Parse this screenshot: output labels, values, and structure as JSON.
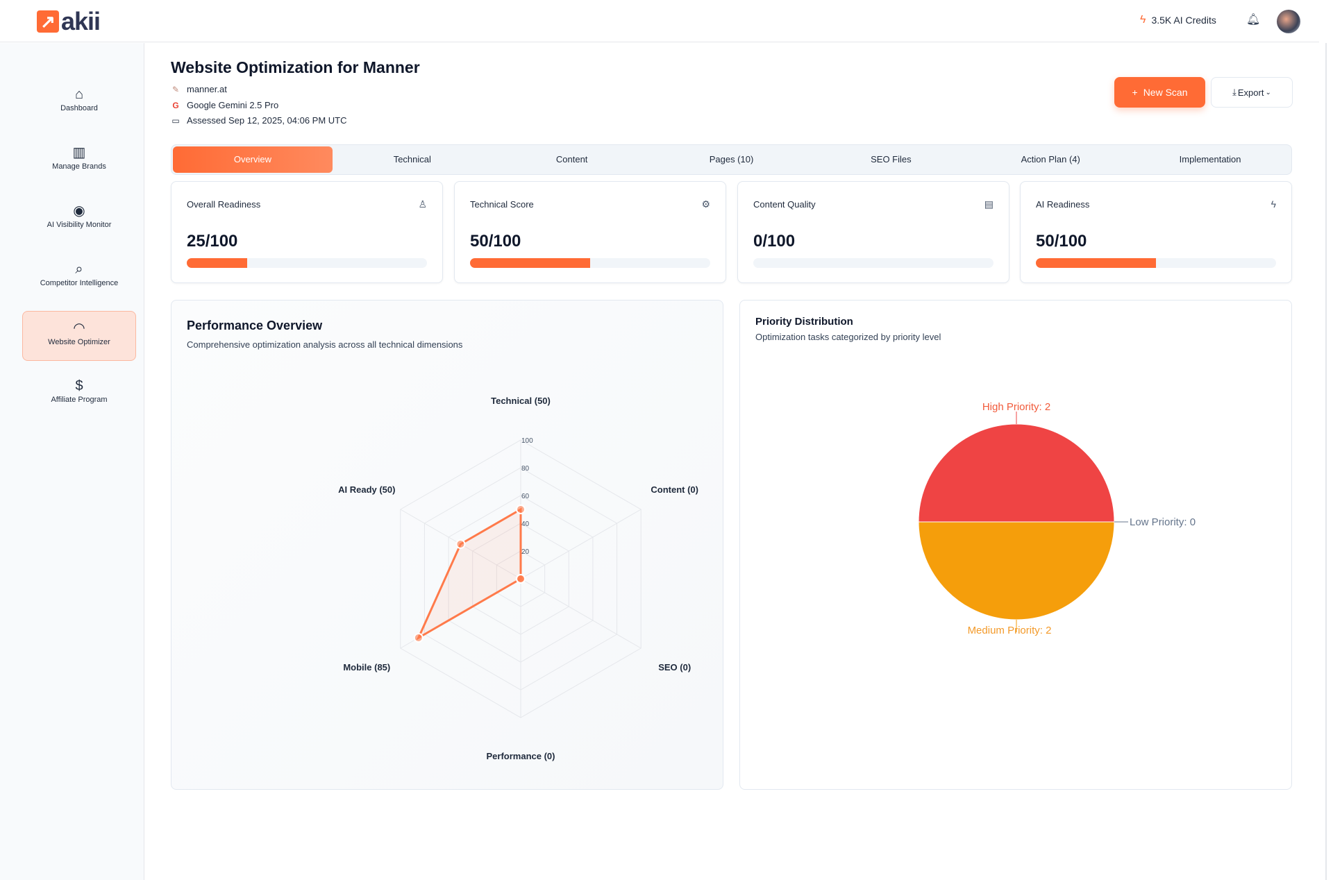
{
  "header": {
    "logo_text": "akii",
    "credits": "3.5K AI Credits"
  },
  "sidebar": {
    "items": [
      {
        "label": "Dashboard",
        "icon": "home-icon",
        "glyph": "⌂"
      },
      {
        "label": "Manage Brands",
        "icon": "building-icon",
        "glyph": "▥"
      },
      {
        "label": "AI Visibility Monitor",
        "icon": "eye-icon",
        "glyph": "◉"
      },
      {
        "label": "Competitor Intelligence",
        "icon": "search-icon",
        "glyph": "⌕"
      },
      {
        "label": "Website Optimizer",
        "icon": "gauge-icon",
        "glyph": "◠"
      },
      {
        "label": "Affiliate Program",
        "icon": "dollar-icon",
        "glyph": "$"
      }
    ]
  },
  "page": {
    "title": "Website Optimization for Manner",
    "domain": "manner.at",
    "model": "Google Gemini 2.5 Pro",
    "assessed": "Assessed Sep 12, 2025, 04:06 PM UTC",
    "new_scan": "New Scan",
    "export": "Export"
  },
  "tabs": [
    "Overview",
    "Technical",
    "Content",
    "Pages (10)",
    "SEO Files",
    "Action Plan (4)",
    "Implementation"
  ],
  "cards": [
    {
      "title": "Overall Readiness",
      "value": "25/100",
      "pct": 25,
      "icon": "award-icon",
      "glyph": "♙"
    },
    {
      "title": "Technical Score",
      "value": "50/100",
      "pct": 50,
      "icon": "gear-icon",
      "glyph": "⚙"
    },
    {
      "title": "Content Quality",
      "value": "0/100",
      "pct": 0,
      "icon": "document-icon",
      "glyph": "▤"
    },
    {
      "title": "AI Readiness",
      "value": "50/100",
      "pct": 50,
      "icon": "bolt-icon",
      "glyph": "ϟ"
    }
  ],
  "colors": {
    "accent": "#ff6b35",
    "high": "#ef4444",
    "medium": "#f59e0b",
    "low": "#64748b"
  },
  "chart_data": [
    {
      "type": "radar",
      "title": "Performance Overview",
      "subtitle": "Comprehensive optimization analysis across all technical dimensions",
      "axes": [
        "Technical (50)",
        "Content (0)",
        "SEO (0)",
        "Performance (0)",
        "Mobile (85)",
        "AI Ready (50)"
      ],
      "values": [
        50,
        0,
        0,
        0,
        85,
        50
      ],
      "range": [
        0,
        100
      ],
      "ticks": [
        "20",
        "40",
        "60",
        "80",
        "100"
      ]
    },
    {
      "type": "pie",
      "title": "Priority Distribution",
      "subtitle": "Optimization tasks categorized by priority level",
      "labels": [
        "High Priority: 2",
        "Low Priority: 0",
        "Medium Priority: 2"
      ],
      "values": [
        2,
        0,
        2
      ]
    }
  ]
}
